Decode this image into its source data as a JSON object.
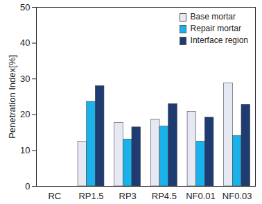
{
  "chart_data": {
    "type": "bar",
    "categories": [
      "RC",
      "RP1.5",
      "RP3",
      "RP4.5",
      "NF0.01",
      "NF0.03"
    ],
    "series": [
      {
        "name": "Base mortar",
        "color": "#e6e8f4",
        "values": [
          0,
          12.5,
          17.7,
          18.6,
          20.8,
          28.8
        ]
      },
      {
        "name": "Repair mortar",
        "color": "#1ab2ea",
        "values": [
          0,
          23.6,
          13.1,
          16.7,
          12.5,
          14.1
        ]
      },
      {
        "name": "Interface region",
        "color": "#1f3c72",
        "values": [
          0,
          28.0,
          16.5,
          23.0,
          19.2,
          22.8
        ]
      }
    ],
    "y_label": "Penetration Index[%]",
    "ylim": [
      0,
      50
    ],
    "yticks": [
      0,
      10,
      20,
      30,
      40,
      50
    ],
    "grid": false,
    "legend": "upper right"
  }
}
